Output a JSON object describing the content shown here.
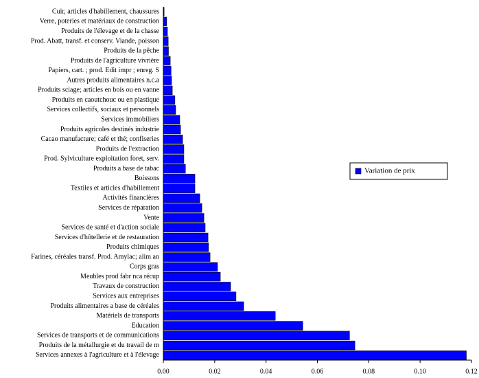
{
  "chart_data": {
    "type": "barh",
    "categories": [
      "Cuir, articles d'habillement, chaussures",
      "Verre, poteries et matériaux de construction",
      "Produits de l'élevage et de la chasse",
      "Prod. Abatt, transf. et conserv. Viande, poisson",
      "Produits de la pêche",
      "Produits de l'agriculture vivrière",
      "Papiers,  cart.  ; prod. Edit impr ; enreg. S",
      "Autres produits alimentaires n.c.a",
      "Produits sciage; articles en bois ou en vanne",
      "Produits en caoutchouc ou en plastique",
      "Services collectifs, sociaux et personnels",
      "Services immobiliers",
      "Produits agricoles destinés industrie",
      "Cacao manufacture; café et thé; confiseries",
      "Produits de l'extraction",
      "Prod.  Sylviculture exploitation foret, serv.",
      "Produits a base de tabac",
      "Boissons",
      "Textiles et articles d'habillement",
      "Activités financières",
      "Services de réparation",
      "Vente",
      "Services de santé et d'action sociale",
      "Services d'hôtellerie et de restauration",
      "Produits chimiques",
      "Farines, céréales transf. Prod. Amylac; alim an",
      "Corps gras",
      "Meubles prod fabr nca récup",
      "Travaux de construction",
      "Services aux entreprises",
      "Produits alimentaires a base de céréales",
      "Matériels de transports",
      "Education",
      "Services de transports et de communications",
      "Produits de la métallurgie et du travail de m",
      "Services annexes à l'agriculture et à l'élevage"
    ],
    "series": [
      {
        "name": "Variation de prix",
        "color": "#0000ff",
        "values": [
          0.0003,
          0.0013,
          0.0016,
          0.0019,
          0.002,
          0.0027,
          0.003,
          0.0032,
          0.0035,
          0.0045,
          0.0048,
          0.0064,
          0.0067,
          0.0075,
          0.008,
          0.008,
          0.0086,
          0.0123,
          0.0123,
          0.0142,
          0.015,
          0.0158,
          0.0163,
          0.0174,
          0.0176,
          0.0182,
          0.0211,
          0.0222,
          0.0262,
          0.0283,
          0.0313,
          0.0436,
          0.0543,
          0.0725,
          0.0746,
          0.118
        ]
      }
    ],
    "xlim": [
      0,
      0.12
    ],
    "xticks": [
      {
        "value": 0,
        "label": "0.00"
      },
      {
        "value": 0.02,
        "label": "0.02"
      },
      {
        "value": 0.04,
        "label": "0.04"
      },
      {
        "value": 0.06,
        "label": "0.06"
      },
      {
        "value": 0.08,
        "label": "0.08"
      },
      {
        "value": 0.1,
        "label": "0.10"
      },
      {
        "value": 0.12,
        "label": "0.12"
      }
    ],
    "legend": "right",
    "grid": false
  }
}
